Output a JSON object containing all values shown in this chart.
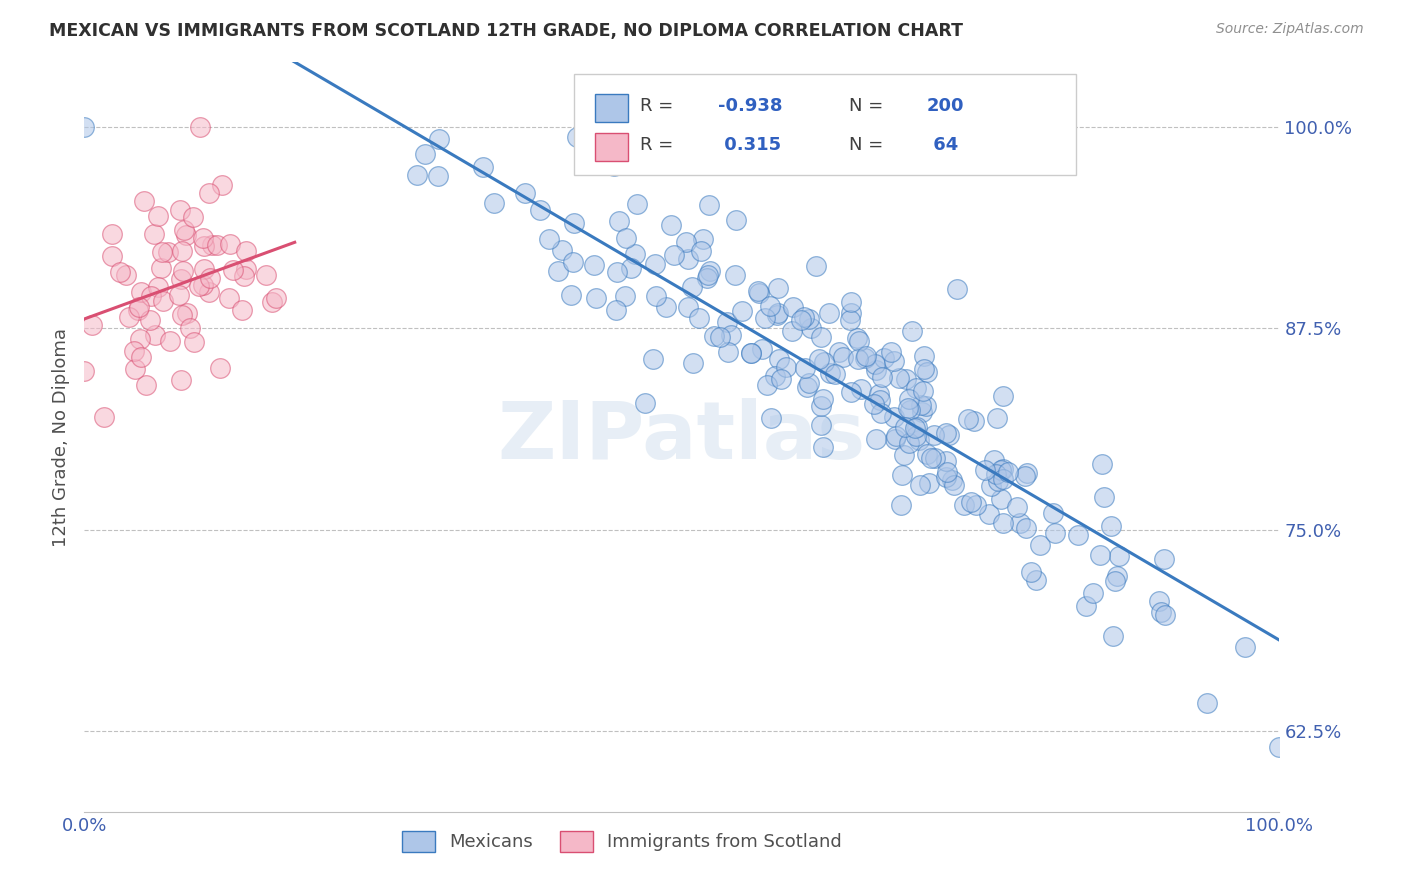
{
  "title": "MEXICAN VS IMMIGRANTS FROM SCOTLAND 12TH GRADE, NO DIPLOMA CORRELATION CHART",
  "source": "Source: ZipAtlas.com",
  "ylabel": "12th Grade, No Diploma",
  "watermark": "ZIPatlas",
  "series1_color": "#aec6e8",
  "series2_color": "#f5b8c8",
  "line1_color": "#3a7abf",
  "line2_color": "#d94f72",
  "background_color": "#ffffff",
  "grid_color": "#c0c0c0",
  "title_color": "#303030",
  "label_color": "#505050",
  "tick_color": "#4060b0",
  "legend_text_color": "#3060c0",
  "xmin": 0.0,
  "xmax": 1.0,
  "ymin": 0.575,
  "ymax": 1.04,
  "yticks": [
    0.625,
    0.75,
    0.875,
    1.0
  ],
  "ytick_labels": [
    "62.5%",
    "75.0%",
    "87.5%",
    "100.0%"
  ],
  "xticks": [
    0.0,
    0.5,
    1.0
  ],
  "xtick_labels": [
    "0.0%",
    "",
    "100.0%"
  ],
  "n1": 200,
  "n2": 64,
  "r1": -0.938,
  "r2": 0.315,
  "seed1": 42,
  "seed2": 77
}
